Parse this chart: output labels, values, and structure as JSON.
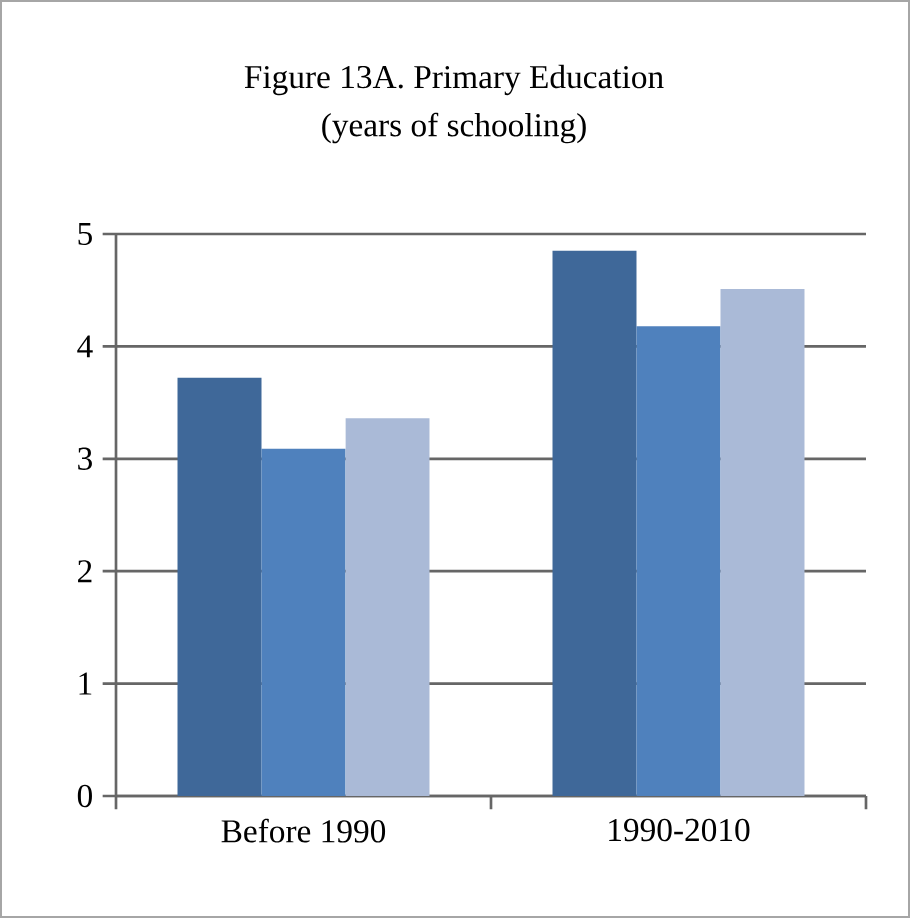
{
  "chart_data": {
    "type": "bar",
    "title": "Figure 13A. Primary Education",
    "subtitle": "(years of schooling)",
    "categories": [
      "Before 1990",
      "1990-2010"
    ],
    "series": [
      {
        "color": "#3f6899",
        "values": [
          3.72,
          4.85
        ]
      },
      {
        "color": "#4f81bd",
        "values": [
          3.09,
          4.18
        ]
      },
      {
        "color": "#aabad7",
        "values": [
          3.36,
          4.51
        ]
      }
    ],
    "ylim": [
      0,
      5
    ],
    "yticks": [
      0,
      1,
      2,
      3,
      4,
      5
    ],
    "grid": "y"
  }
}
